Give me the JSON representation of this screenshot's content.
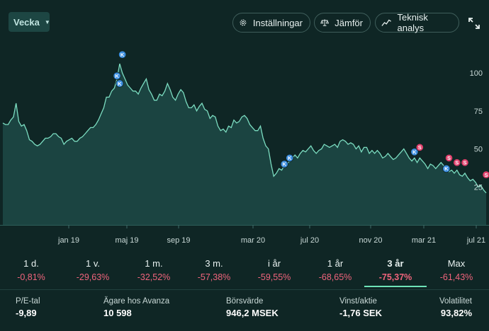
{
  "toolbar": {
    "period_value": "Vecka",
    "settings_label": "Inställningar",
    "compare_label": "Jämför",
    "technical_label": "Teknisk analys"
  },
  "colors": {
    "background": "#0f2625",
    "area_fill": "#1d4a47",
    "line": "#7bdcc0",
    "buy_marker": "#3d8fe0",
    "sell_marker": "#e03f6b",
    "negative": "#f0647c",
    "active_underline": "#6ee3b8"
  },
  "chart_data": {
    "type": "area",
    "x_labels": [
      "jan 19",
      "maj 19",
      "sep 19",
      "mar 20",
      "jul 20",
      "nov 20",
      "mar 21",
      "jul 21"
    ],
    "y_ticks": [
      25,
      50,
      75,
      100
    ],
    "ylim": [
      0,
      120
    ],
    "grid": false,
    "y": [
      67,
      66,
      66,
      69,
      71,
      80,
      68,
      65,
      66,
      62,
      56,
      55,
      53,
      52,
      53,
      55,
      57,
      57,
      58,
      60,
      60,
      58,
      57,
      53,
      55,
      56,
      57,
      55,
      55,
      57,
      58,
      60,
      62,
      64,
      64,
      66,
      69,
      73,
      77,
      84,
      84,
      88,
      90,
      96,
      106,
      100,
      96,
      92,
      90,
      88,
      88,
      86,
      90,
      93,
      96,
      89,
      86,
      82,
      82,
      86,
      85,
      88,
      93,
      89,
      84,
      82,
      86,
      89,
      87,
      81,
      77,
      77,
      79,
      75,
      78,
      80,
      76,
      75,
      70,
      72,
      71,
      65,
      62,
      63,
      61,
      65,
      64,
      69,
      67,
      68,
      71,
      72,
      70,
      66,
      64,
      62,
      62,
      65,
      57,
      52,
      50,
      40,
      32,
      34,
      37,
      36,
      39,
      40,
      42,
      44,
      46,
      44,
      47,
      49,
      48,
      50,
      52,
      49,
      47,
      49,
      50,
      53,
      52,
      51,
      52,
      53,
      51,
      55,
      56,
      55,
      53,
      54,
      53,
      50,
      52,
      48,
      51,
      51,
      47,
      49,
      47,
      49,
      47,
      44,
      45,
      47,
      45,
      43,
      44,
      46,
      48,
      50,
      47,
      44,
      42,
      44,
      41,
      44,
      42,
      40,
      37,
      40,
      39,
      37,
      39,
      41,
      39,
      37,
      35,
      36,
      34,
      36,
      33,
      32,
      34,
      31,
      29,
      30,
      28,
      25,
      26,
      23,
      21
    ],
    "markers": [
      {
        "label": "K",
        "kind": "buy",
        "i": 45,
        "y": 112
      },
      {
        "label": "K",
        "kind": "buy",
        "i": 43,
        "y": 98
      },
      {
        "label": "K",
        "kind": "buy",
        "i": 44,
        "y": 93
      },
      {
        "label": "K",
        "kind": "buy",
        "i": 106,
        "y": 40
      },
      {
        "label": "K",
        "kind": "buy",
        "i": 108,
        "y": 44
      },
      {
        "label": "K",
        "kind": "buy",
        "i": 155,
        "y": 48
      },
      {
        "label": "S",
        "kind": "sell",
        "i": 157,
        "y": 51
      },
      {
        "label": "K",
        "kind": "buy",
        "i": 167,
        "y": 37
      },
      {
        "label": "S",
        "kind": "sell",
        "i": 168,
        "y": 44
      },
      {
        "label": "S",
        "kind": "sell",
        "i": 171,
        "y": 41
      },
      {
        "label": "S",
        "kind": "sell",
        "i": 174,
        "y": 41
      },
      {
        "label": "S",
        "kind": "sell",
        "i": 182,
        "y": 33
      }
    ]
  },
  "periods": [
    {
      "label": "1 d.",
      "value": "-0,81%",
      "active": false
    },
    {
      "label": "1 v.",
      "value": "-29,63%",
      "active": false
    },
    {
      "label": "1 m.",
      "value": "-32,52%",
      "active": false
    },
    {
      "label": "3 m.",
      "value": "-57,38%",
      "active": false
    },
    {
      "label": "i år",
      "value": "-59,55%",
      "active": false
    },
    {
      "label": "1 år",
      "value": "-68,65%",
      "active": false
    },
    {
      "label": "3 år",
      "value": "-75,37%",
      "active": true
    },
    {
      "label": "Max",
      "value": "-61,43%",
      "active": false
    }
  ],
  "stats": {
    "pe": {
      "label": "P/E-tal",
      "value": "-9,89"
    },
    "owners": {
      "label": "Ägare hos Avanza",
      "value": "10 598"
    },
    "market_cap": {
      "label": "Börsvärde",
      "value": "946,2 MSEK"
    },
    "eps": {
      "label": "Vinst/aktie",
      "value": "-1,76 SEK"
    },
    "volatility": {
      "label": "Volatilitet",
      "value": "93,82%"
    }
  }
}
